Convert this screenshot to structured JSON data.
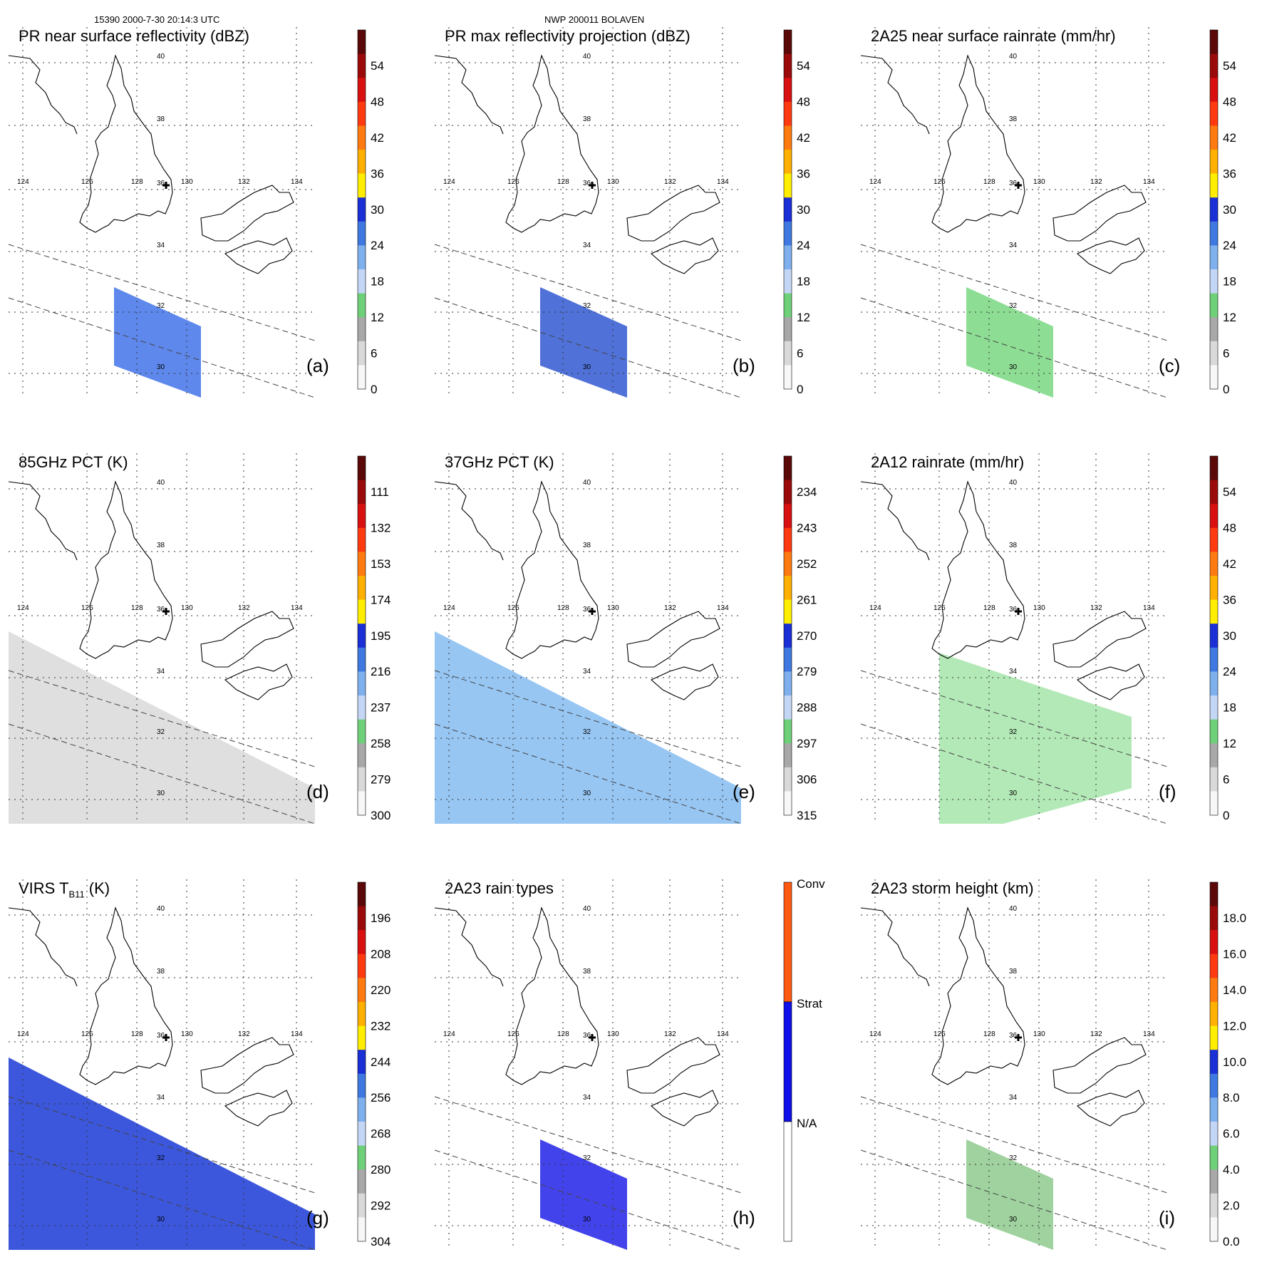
{
  "header": {
    "left": "15390 2000-7-30 20:14:3 UTC",
    "center": "NWP 200011 BOLAVEN"
  },
  "map": {
    "lat_labels": [
      "40",
      "38",
      "36",
      "34",
      "32",
      "30"
    ],
    "lon_labels": [
      "124",
      "126",
      "128",
      "130",
      "132",
      "134"
    ]
  },
  "panels": [
    {
      "id": "a",
      "title": "PR near surface reflectivity (dBZ)",
      "letter": "(a)",
      "ticks": [
        "54",
        "48",
        "42",
        "36",
        "30",
        "24",
        "18",
        "12",
        "6",
        "0"
      ],
      "swath": "narrow",
      "fill": "#3a6ee8"
    },
    {
      "id": "b",
      "title": "PR max reflectivity projection (dBZ)",
      "letter": "(b)",
      "ticks": [
        "54",
        "48",
        "42",
        "36",
        "30",
        "24",
        "18",
        "12",
        "6",
        "0"
      ],
      "swath": "narrow",
      "fill": "#2a52d0"
    },
    {
      "id": "c",
      "title": "2A25 near surface rainrate (mm/hr)",
      "letter": "(c)",
      "ticks": [
        "54",
        "48",
        "42",
        "36",
        "30",
        "24",
        "18",
        "12",
        "6",
        "0"
      ],
      "swath": "narrow",
      "fill": "#74d77c"
    },
    {
      "id": "d",
      "title": "85GHz PCT (K)",
      "letter": "(d)",
      "ticks": [
        "111",
        "132",
        "153",
        "174",
        "195",
        "216",
        "237",
        "258",
        "279",
        "300"
      ],
      "swath": "wide",
      "fill": "#dcdcdc"
    },
    {
      "id": "e",
      "title": "37GHz PCT (K)",
      "letter": "(e)",
      "ticks": [
        "234",
        "243",
        "252",
        "261",
        "270",
        "279",
        "288",
        "297",
        "306",
        "315"
      ],
      "swath": "wide",
      "fill": "#8cc0f2"
    },
    {
      "id": "f",
      "title": "2A12 rainrate (mm/hr)",
      "letter": "(f)",
      "ticks": [
        "54",
        "48",
        "42",
        "36",
        "30",
        "24",
        "18",
        "12",
        "6",
        "0"
      ],
      "swath": "wide_sparse",
      "fill": "#74d77c"
    },
    {
      "id": "g",
      "title": "VIRS T",
      "title_sub": "B11",
      "title_tail": " (K)",
      "letter": "(g)",
      "ticks": [
        "196",
        "208",
        "220",
        "232",
        "244",
        "256",
        "268",
        "280",
        "292",
        "304"
      ],
      "swath": "wide",
      "fill": "#2745d8"
    },
    {
      "id": "h",
      "title": "2A23 rain types",
      "letter": "(h)",
      "ticks": [
        "Conv",
        "Strat",
        "N/A"
      ],
      "swath": "narrow",
      "fill": "#1a1ae8",
      "categorical": true
    },
    {
      "id": "i",
      "title": "2A23 storm height (km)",
      "letter": "(i)",
      "ticks": [
        "18.0",
        "16.0",
        "14.0",
        "12.0",
        "10.0",
        "8.0",
        "6.0",
        "4.0",
        "2.0",
        "0.0"
      ],
      "swath": "narrow",
      "fill": "#8ac88a"
    }
  ],
  "colors": {
    "scale": [
      "#f7f7f7",
      "#d9d9d9",
      "#a8a8a8",
      "#6fd07a",
      "#c4d6f6",
      "#7fb0ee",
      "#3f78e0",
      "#1a2fd6",
      "#ffee00",
      "#ffb000",
      "#ff7a10",
      "#ff3a10",
      "#d81010",
      "#9a0a0a",
      "#5a0808"
    ],
    "categorical": [
      "#ffffff",
      "#1010e8",
      "#ff5a10"
    ]
  }
}
